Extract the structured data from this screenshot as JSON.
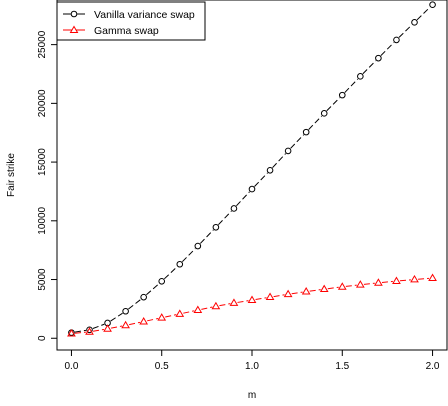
{
  "chart_data": {
    "type": "line",
    "xlabel": "m",
    "ylabel": "Fair strike",
    "xlim": [
      -0.08,
      2.08
    ],
    "ylim": [
      -1000,
      28800
    ],
    "xticks": [
      0.0,
      0.5,
      1.0,
      1.5,
      2.0
    ],
    "xtick_labels": [
      "0.0",
      "0.5",
      "1.0",
      "1.5",
      "2.0"
    ],
    "yticks": [
      0,
      5000,
      10000,
      15000,
      20000,
      25000
    ],
    "ytick_labels": [
      "0",
      "5000",
      "10000",
      "15000",
      "20000",
      "25000"
    ],
    "grid": false,
    "legend_position": "top-left",
    "x": [
      0.0,
      0.1,
      0.2,
      0.3,
      0.4,
      0.5,
      0.6,
      0.7,
      0.8,
      0.9,
      1.0,
      1.1,
      1.2,
      1.3,
      1.4,
      1.5,
      1.6,
      1.7,
      1.8,
      1.9,
      2.0
    ],
    "series": [
      {
        "name": "Vanilla variance swap",
        "color": "#000000",
        "marker": "circle",
        "line": "dashed",
        "values": [
          480,
          720,
          1300,
          2300,
          3500,
          4850,
          6300,
          7850,
          9450,
          11050,
          12700,
          14300,
          15950,
          17550,
          19150,
          20700,
          22300,
          23850,
          25400,
          26900,
          28400
        ]
      },
      {
        "name": "Gamma swap",
        "color": "#ff0000",
        "marker": "triangle",
        "line": "dashed",
        "values": [
          400,
          550,
          800,
          1100,
          1420,
          1750,
          2070,
          2400,
          2720,
          3000,
          3250,
          3500,
          3750,
          3970,
          4180,
          4380,
          4560,
          4720,
          4870,
          5000,
          5120
        ]
      }
    ]
  }
}
